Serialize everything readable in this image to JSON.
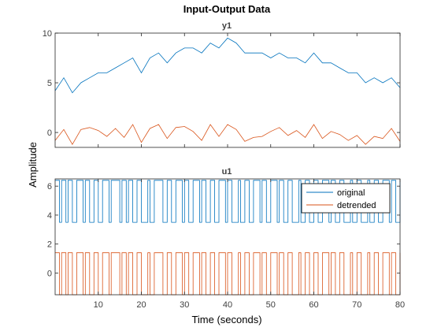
{
  "figure": {
    "title": "Input-Output Data",
    "xlabel": "Time (seconds)",
    "ylabel": "Amplitude"
  },
  "colors": {
    "original": "#0072BD",
    "detrended": "#D95319",
    "axes": "#262626",
    "grid": "#404040"
  },
  "chart_data": [
    {
      "type": "line",
      "title": "y1",
      "x_range": [
        0,
        80
      ],
      "ylim": [
        -1.5,
        10
      ],
      "xticks": [],
      "yticks": [
        0,
        5,
        10
      ],
      "series": [
        {
          "name": "original",
          "color": "#0072BD",
          "x": [
            0,
            2,
            4,
            6,
            8,
            10,
            12,
            14,
            16,
            18,
            20,
            22,
            24,
            26,
            28,
            30,
            32,
            34,
            36,
            38,
            40,
            42,
            44,
            46,
            48,
            50,
            52,
            54,
            56,
            58,
            60,
            62,
            64,
            66,
            68,
            70,
            72,
            74,
            76,
            78,
            80
          ],
          "y": [
            4.2,
            5.5,
            4.0,
            5.0,
            5.5,
            6.0,
            6.0,
            6.5,
            7.0,
            7.5,
            6.0,
            7.5,
            8.0,
            7.0,
            8.0,
            8.5,
            8.5,
            8.0,
            9.0,
            8.5,
            9.5,
            9.0,
            8.0,
            8.0,
            8.0,
            7.5,
            8.0,
            7.5,
            7.5,
            7.0,
            8.0,
            7.0,
            7.0,
            6.5,
            6.0,
            6.0,
            5.0,
            5.5,
            5.0,
            5.5,
            4.5
          ]
        },
        {
          "name": "detrended",
          "color": "#D95319",
          "x": [
            0,
            2,
            4,
            6,
            8,
            10,
            12,
            14,
            16,
            18,
            20,
            22,
            24,
            26,
            28,
            30,
            32,
            34,
            36,
            38,
            40,
            42,
            44,
            46,
            48,
            50,
            52,
            54,
            56,
            58,
            60,
            62,
            64,
            66,
            68,
            70,
            72,
            74,
            76,
            78,
            80
          ],
          "y": [
            -0.8,
            0.3,
            -1.2,
            0.3,
            0.5,
            0.2,
            -0.4,
            0.4,
            -0.5,
            0.8,
            -1.0,
            0.4,
            0.8,
            -0.6,
            0.5,
            0.6,
            0.1,
            -0.8,
            0.8,
            -0.4,
            0.8,
            0.3,
            -0.9,
            -0.5,
            -0.4,
            0.1,
            0.5,
            -0.3,
            0.2,
            -0.5,
            0.8,
            -0.6,
            0.1,
            -0.2,
            -0.8,
            -0.3,
            -1.2,
            -0.4,
            -0.6,
            0.4,
            -0.9
          ]
        }
      ]
    },
    {
      "type": "line",
      "title": "u1",
      "x_range": [
        0,
        80
      ],
      "ylim": [
        -1.5,
        6.5
      ],
      "xticks": [
        10,
        20,
        30,
        40,
        50,
        60,
        70,
        80
      ],
      "yticks": [
        0,
        2,
        4,
        6
      ],
      "legend": {
        "location": "top-right",
        "entries": [
          "original",
          "detrended"
        ]
      },
      "series": [
        {
          "name": "original",
          "color": "#0072BD",
          "levels": [
            3.5,
            6.4
          ],
          "x": [
            0,
            1,
            1.5,
            2.5,
            3,
            4,
            5,
            6.5,
            7,
            8,
            9,
            10,
            11,
            12.5,
            13,
            15,
            15.5,
            16.5,
            17,
            18,
            19,
            20,
            21.5,
            22,
            23,
            25,
            26,
            27,
            28,
            29.5,
            30,
            31,
            32,
            33.5,
            34,
            35,
            36,
            37,
            38,
            39.5,
            40,
            41,
            42.5,
            43,
            44,
            45,
            46,
            47.5,
            48,
            49,
            50,
            51.5,
            52,
            53,
            54,
            55,
            56.5,
            57,
            58,
            59,
            60,
            61,
            62,
            63.5,
            64,
            65,
            66,
            67,
            68.5,
            69,
            70,
            71,
            72.5,
            73,
            74,
            75,
            76,
            77.5,
            78,
            79,
            80
          ],
          "y": [
            6.4,
            3.5,
            6.4,
            3.5,
            6.4,
            3.5,
            6.4,
            3.5,
            6.4,
            3.5,
            6.4,
            3.5,
            6.4,
            3.5,
            6.4,
            3.5,
            6.4,
            3.5,
            6.4,
            3.5,
            6.4,
            3.5,
            6.4,
            3.5,
            6.4,
            3.5,
            6.4,
            3.5,
            6.4,
            3.5,
            6.4,
            3.5,
            6.4,
            3.5,
            6.4,
            3.5,
            6.4,
            3.5,
            6.4,
            3.5,
            6.4,
            3.5,
            6.4,
            3.5,
            6.4,
            3.5,
            6.4,
            3.5,
            6.4,
            3.5,
            6.4,
            3.5,
            6.4,
            3.5,
            6.4,
            3.5,
            6.4,
            3.5,
            6.4,
            3.5,
            6.4,
            3.5,
            6.4,
            3.5,
            6.4,
            3.5,
            6.4,
            3.5,
            6.4,
            3.5,
            6.4,
            3.5,
            6.4,
            3.5,
            6.4,
            3.5,
            6.4,
            3.5,
            6.4,
            3.5,
            6.4
          ]
        },
        {
          "name": "detrended",
          "color": "#D95319",
          "levels": [
            -1.5,
            1.4
          ],
          "x": [
            0,
            1,
            1.5,
            2.5,
            3,
            4,
            5,
            6.5,
            7,
            8,
            9,
            10,
            11,
            12.5,
            13,
            15,
            15.5,
            16.5,
            17,
            18,
            19,
            20,
            21.5,
            22,
            23,
            25,
            26,
            27,
            28,
            29.5,
            30,
            31,
            32,
            33.5,
            34,
            35,
            36,
            37,
            38,
            39.5,
            40,
            41,
            42.5,
            43,
            44,
            45,
            46,
            47.5,
            48,
            49,
            50,
            51.5,
            52,
            53,
            54,
            55,
            56.5,
            57,
            58,
            59,
            60,
            61,
            62,
            63.5,
            64,
            65,
            66,
            67,
            68.5,
            69,
            70,
            71,
            72.5,
            73,
            74,
            75,
            76,
            77.5,
            78,
            79,
            80
          ],
          "y": [
            1.4,
            -1.5,
            1.4,
            -1.5,
            1.4,
            -1.5,
            1.4,
            -1.5,
            1.4,
            -1.5,
            1.4,
            -1.5,
            1.4,
            -1.5,
            1.4,
            -1.5,
            1.4,
            -1.5,
            1.4,
            -1.5,
            1.4,
            -1.5,
            1.4,
            -1.5,
            1.4,
            -1.5,
            1.4,
            -1.5,
            1.4,
            -1.5,
            1.4,
            -1.5,
            1.4,
            -1.5,
            1.4,
            -1.5,
            1.4,
            -1.5,
            1.4,
            -1.5,
            1.4,
            -1.5,
            1.4,
            -1.5,
            1.4,
            -1.5,
            1.4,
            -1.5,
            1.4,
            -1.5,
            1.4,
            -1.5,
            1.4,
            -1.5,
            1.4,
            -1.5,
            1.4,
            -1.5,
            1.4,
            -1.5,
            1.4,
            -1.5,
            1.4,
            -1.5,
            1.4,
            -1.5,
            1.4,
            -1.5,
            1.4,
            -1.5,
            1.4,
            -1.5,
            1.4,
            -1.5,
            1.4,
            -1.5,
            1.4,
            -1.5,
            1.4,
            -1.5,
            1.4
          ]
        }
      ]
    }
  ]
}
